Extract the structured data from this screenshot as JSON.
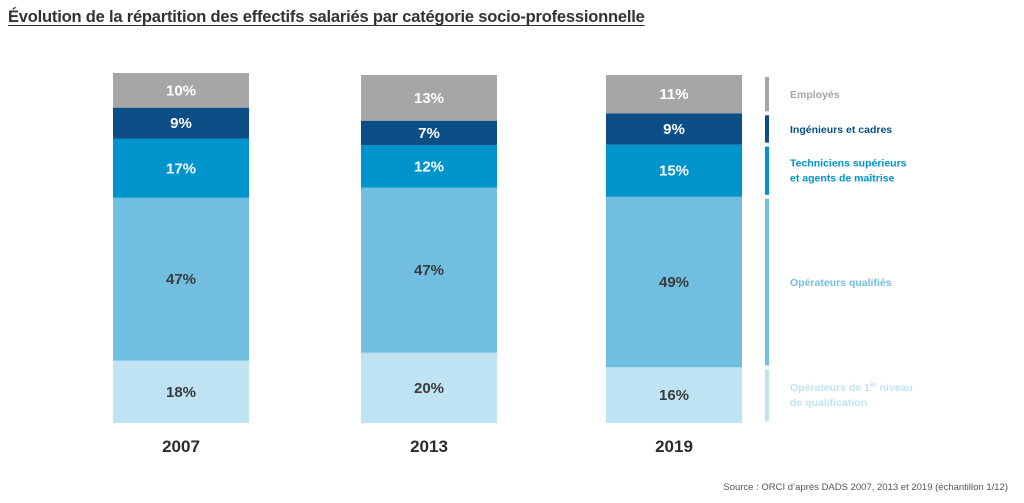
{
  "title": "Évolution de la répartition des effectifs salariés par catégorie socio-professionnelle",
  "source": "Source : ORCI d’après DADS 2007, 2013 et 2019 (échantillon 1/12)",
  "colors": {
    "Employés": "#a6a6a6",
    "Ingénieurs et cadres": "#0b4f86",
    "Techniciens supérieurs et agents de maîtrise": "#0094cc",
    "Opérateurs qualifiés": "#70bfe0",
    "Opérateurs de 1er niveau de qualification": "#bfe3f3"
  },
  "chart_data": {
    "type": "bar",
    "stacked": true,
    "normalized_to": 100,
    "categories": [
      "2007",
      "2013",
      "2019"
    ],
    "series": [
      {
        "name": "Opérateurs de 1er niveau de qualification",
        "values": [
          18,
          20,
          16
        ]
      },
      {
        "name": "Opérateurs qualifiés",
        "values": [
          47,
          47,
          49
        ]
      },
      {
        "name": "Techniciens supérieurs et agents de maîtrise",
        "values": [
          17,
          12,
          15
        ]
      },
      {
        "name": "Ingénieurs et cadres",
        "values": [
          9,
          7,
          9
        ]
      },
      {
        "name": "Employés",
        "values": [
          10,
          13,
          11
        ]
      }
    ],
    "data_labels": [
      [
        "18%",
        "20%",
        "16%"
      ],
      [
        "47%",
        "47%",
        "49%"
      ],
      [
        "17%",
        "12%",
        "15%"
      ],
      [
        "9%",
        "7%",
        "9%"
      ],
      [
        "10%",
        "13%",
        "11%"
      ]
    ],
    "legend": [
      {
        "lines": [
          "Employés"
        ]
      },
      {
        "lines": [
          "Ingénieurs et cadres"
        ]
      },
      {
        "lines": [
          "Techniciens supérieurs",
          "et agents de maîtrise"
        ]
      },
      {
        "lines": [
          "Opérateurs qualifiés"
        ]
      },
      {
        "lines": [
          "Opérateurs de 1",
          "er",
          " niveau",
          "de qualification"
        ]
      }
    ],
    "legend_position": "right",
    "title": "Évolution de la répartition des effectifs salariés par catégorie socio-professionnelle",
    "xlabel": "",
    "ylabel": "",
    "ylim": [
      0,
      100
    ],
    "grid": false
  }
}
